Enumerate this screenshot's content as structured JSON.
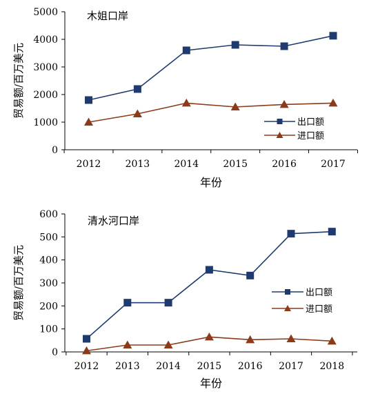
{
  "chart_data": [
    {
      "type": "line",
      "title": "木姐口岸",
      "xlabel": "年份",
      "ylabel": "贸易额/百万美元",
      "categories": [
        "2012",
        "2013",
        "2014",
        "2015",
        "2016",
        "2017"
      ],
      "ylim": [
        0,
        5000
      ],
      "yticks": [
        0,
        1000,
        2000,
        3000,
        4000,
        5000
      ],
      "legend_position": "right-lower",
      "grid": false,
      "series": [
        {
          "name": "出口额",
          "marker": "square",
          "color": "#1f3a6e",
          "values": [
            1800,
            2200,
            3600,
            3800,
            3750,
            4130
          ]
        },
        {
          "name": "进口额",
          "marker": "triangle",
          "color": "#8b3a1a",
          "values": [
            1000,
            1300,
            1690,
            1550,
            1640,
            1690
          ]
        }
      ]
    },
    {
      "type": "line",
      "title": "清水河口岸",
      "xlabel": "年份",
      "ylabel": "贸易额/百万美元",
      "categories": [
        "2012",
        "2013",
        "2014",
        "2015",
        "2016",
        "2017",
        "2018"
      ],
      "ylim": [
        0,
        600
      ],
      "yticks": [
        0,
        100,
        200,
        300,
        400,
        500,
        600
      ],
      "legend_position": "right-middle",
      "grid": false,
      "series": [
        {
          "name": "出口额",
          "marker": "square",
          "color": "#1f3a6e",
          "values": [
            57,
            214,
            214,
            357,
            332,
            514,
            523
          ]
        },
        {
          "name": "进口额",
          "marker": "triangle",
          "color": "#8b3a1a",
          "values": [
            5,
            30,
            30,
            65,
            53,
            57,
            47
          ]
        }
      ]
    }
  ]
}
